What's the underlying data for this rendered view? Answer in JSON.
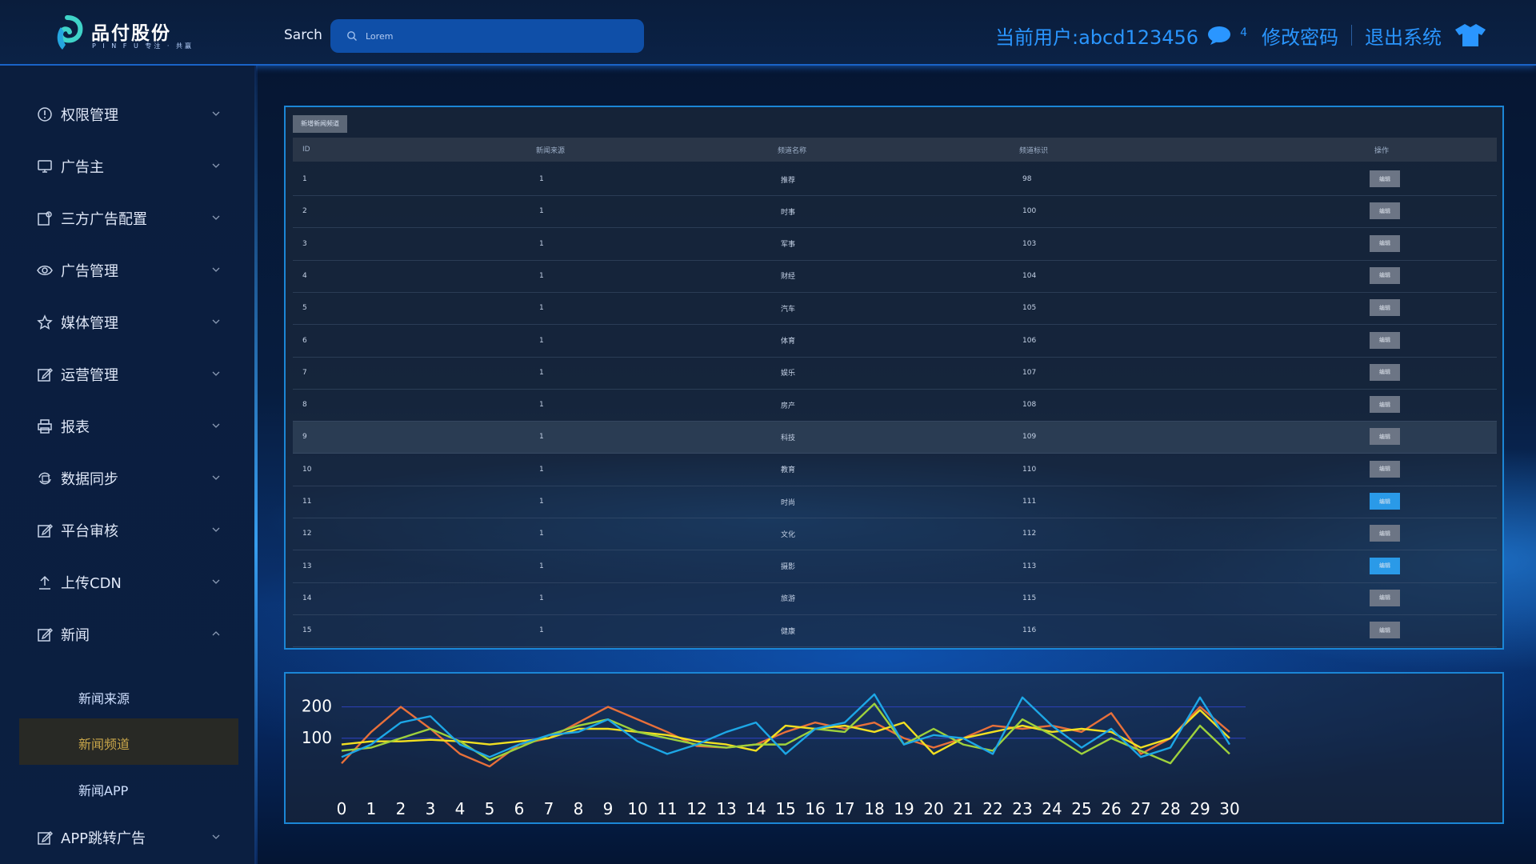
{
  "header": {
    "logo_title": "品付股份",
    "logo_sub": "P I N F U 专注 · 共赢",
    "search_label": "Sarch",
    "search_placeholder": "Lorem",
    "user_label": "当前用户:abcd123456",
    "message_count": "4",
    "change_password": "修改密码",
    "logout": "退出系统",
    "accent": "#2a96ff"
  },
  "sidebar": {
    "items": [
      {
        "label": "权限管理",
        "icon": "info-icon",
        "expanded": false
      },
      {
        "label": "广告主",
        "icon": "monitor-icon",
        "expanded": false
      },
      {
        "label": "三方广告配置",
        "icon": "config-icon",
        "expanded": false
      },
      {
        "label": "广告管理",
        "icon": "eye-icon",
        "expanded": false
      },
      {
        "label": "媒体管理",
        "icon": "star-icon",
        "expanded": false
      },
      {
        "label": "运营管理",
        "icon": "edit-icon",
        "expanded": false
      },
      {
        "label": "报表",
        "icon": "printer-icon",
        "expanded": false
      },
      {
        "label": "数据同步",
        "icon": "sync-icon",
        "expanded": false
      },
      {
        "label": "平台审核",
        "icon": "edit-icon",
        "expanded": false
      },
      {
        "label": "上传CDN",
        "icon": "upload-icon",
        "expanded": false
      },
      {
        "label": "新闻",
        "icon": "edit-icon",
        "expanded": true
      },
      {
        "label": "APP跳转广告",
        "icon": "edit-icon",
        "expanded": false
      }
    ],
    "sub_items": [
      {
        "label": "新闻来源",
        "active": false
      },
      {
        "label": "新闻频道",
        "active": true
      },
      {
        "label": "新闻APP",
        "active": false
      }
    ]
  },
  "table": {
    "add_button": "新增新闻频道",
    "headers": [
      "ID",
      "新闻来源",
      "频道名称",
      "频道标识",
      "操作"
    ],
    "rows": [
      {
        "id": "1",
        "source": "1",
        "name": "推荐",
        "code": "98",
        "action": "编辑",
        "highlight": false,
        "action_blue": false
      },
      {
        "id": "2",
        "source": "1",
        "name": "时事",
        "code": "100",
        "action": "编辑",
        "highlight": false,
        "action_blue": false
      },
      {
        "id": "3",
        "source": "1",
        "name": "军事",
        "code": "103",
        "action": "编辑",
        "highlight": false,
        "action_blue": false
      },
      {
        "id": "4",
        "source": "1",
        "name": "财经",
        "code": "104",
        "action": "编辑",
        "highlight": false,
        "action_blue": false
      },
      {
        "id": "5",
        "source": "1",
        "name": "汽车",
        "code": "105",
        "action": "编辑",
        "highlight": false,
        "action_blue": false
      },
      {
        "id": "6",
        "source": "1",
        "name": "体育",
        "code": "106",
        "action": "编辑",
        "highlight": false,
        "action_blue": false
      },
      {
        "id": "7",
        "source": "1",
        "name": "娱乐",
        "code": "107",
        "action": "编辑",
        "highlight": false,
        "action_blue": false
      },
      {
        "id": "8",
        "source": "1",
        "name": "房产",
        "code": "108",
        "action": "编辑",
        "highlight": false,
        "action_blue": false
      },
      {
        "id": "9",
        "source": "1",
        "name": "科技",
        "code": "109",
        "action": "编辑",
        "highlight": true,
        "action_blue": false
      },
      {
        "id": "10",
        "source": "1",
        "name": "教育",
        "code": "110",
        "action": "编辑",
        "highlight": false,
        "action_blue": false
      },
      {
        "id": "11",
        "source": "1",
        "name": "时尚",
        "code": "111",
        "action": "编辑",
        "highlight": false,
        "action_blue": true
      },
      {
        "id": "12",
        "source": "1",
        "name": "文化",
        "code": "112",
        "action": "编辑",
        "highlight": false,
        "action_blue": false
      },
      {
        "id": "13",
        "source": "1",
        "name": "摄影",
        "code": "113",
        "action": "编辑",
        "highlight": false,
        "action_blue": true
      },
      {
        "id": "14",
        "source": "1",
        "name": "旅游",
        "code": "115",
        "action": "编辑",
        "highlight": false,
        "action_blue": false
      },
      {
        "id": "15",
        "source": "1",
        "name": "健康",
        "code": "116",
        "action": "编辑",
        "highlight": false,
        "action_blue": false
      }
    ]
  },
  "chart_data": {
    "type": "line",
    "x": [
      0,
      1,
      2,
      3,
      4,
      5,
      6,
      7,
      8,
      9,
      10,
      11,
      12,
      13,
      14,
      15,
      16,
      17,
      18,
      19,
      20,
      21,
      22,
      23,
      24,
      25,
      26,
      27,
      28,
      29,
      30
    ],
    "y_ticks": [
      "100",
      "200"
    ],
    "ylim": [
      0,
      260
    ],
    "grid": true,
    "series": [
      {
        "color": "#e8703a",
        "values": [
          20,
          120,
          200,
          130,
          50,
          10,
          80,
          100,
          150,
          200,
          160,
          120,
          75,
          70,
          80,
          120,
          150,
          130,
          150,
          100,
          70,
          100,
          140,
          130,
          140,
          120,
          180,
          50,
          100,
          200,
          120
        ]
      },
      {
        "color": "#f2e021",
        "values": [
          80,
          90,
          90,
          95,
          90,
          80,
          90,
          100,
          130,
          130,
          120,
          110,
          90,
          80,
          60,
          140,
          130,
          140,
          120,
          150,
          50,
          100,
          120,
          140,
          120,
          130,
          120,
          70,
          100,
          190,
          100
        ]
      },
      {
        "color": "#9ed13c",
        "values": [
          60,
          70,
          100,
          130,
          90,
          30,
          70,
          110,
          140,
          160,
          120,
          100,
          80,
          70,
          80,
          80,
          130,
          120,
          210,
          80,
          130,
          80,
          60,
          160,
          110,
          50,
          100,
          60,
          20,
          140,
          50
        ]
      },
      {
        "color": "#1da7e6",
        "values": [
          40,
          80,
          150,
          170,
          80,
          40,
          80,
          110,
          120,
          160,
          90,
          50,
          80,
          120,
          150,
          50,
          130,
          150,
          240,
          80,
          110,
          100,
          50,
          230,
          140,
          70,
          130,
          40,
          70,
          230,
          80
        ]
      }
    ]
  }
}
